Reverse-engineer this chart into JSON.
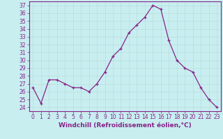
{
  "x": [
    0,
    1,
    2,
    3,
    4,
    5,
    6,
    7,
    8,
    9,
    10,
    11,
    12,
    13,
    14,
    15,
    16,
    17,
    18,
    19,
    20,
    21,
    22,
    23
  ],
  "y": [
    26.5,
    24.5,
    27.5,
    27.5,
    27.0,
    26.5,
    26.5,
    26.0,
    27.0,
    28.5,
    30.5,
    31.5,
    33.5,
    34.5,
    35.5,
    37.0,
    36.5,
    32.5,
    30.0,
    29.0,
    28.5,
    26.5,
    25.0,
    24.0
  ],
  "line_color": "#882288",
  "marker": "+",
  "bg_color": "#c8eef0",
  "grid_color": "#bbdddd",
  "xlabel": "Windchill (Refroidissement éolien,°C)",
  "ylabel_ticks": [
    24,
    25,
    26,
    27,
    28,
    29,
    30,
    31,
    32,
    33,
    34,
    35,
    36,
    37
  ],
  "ylim": [
    23.5,
    37.5
  ],
  "xlim": [
    -0.5,
    23.5
  ],
  "tick_color": "#882288",
  "label_fontsize": 6.5,
  "tick_fontsize": 5.5
}
